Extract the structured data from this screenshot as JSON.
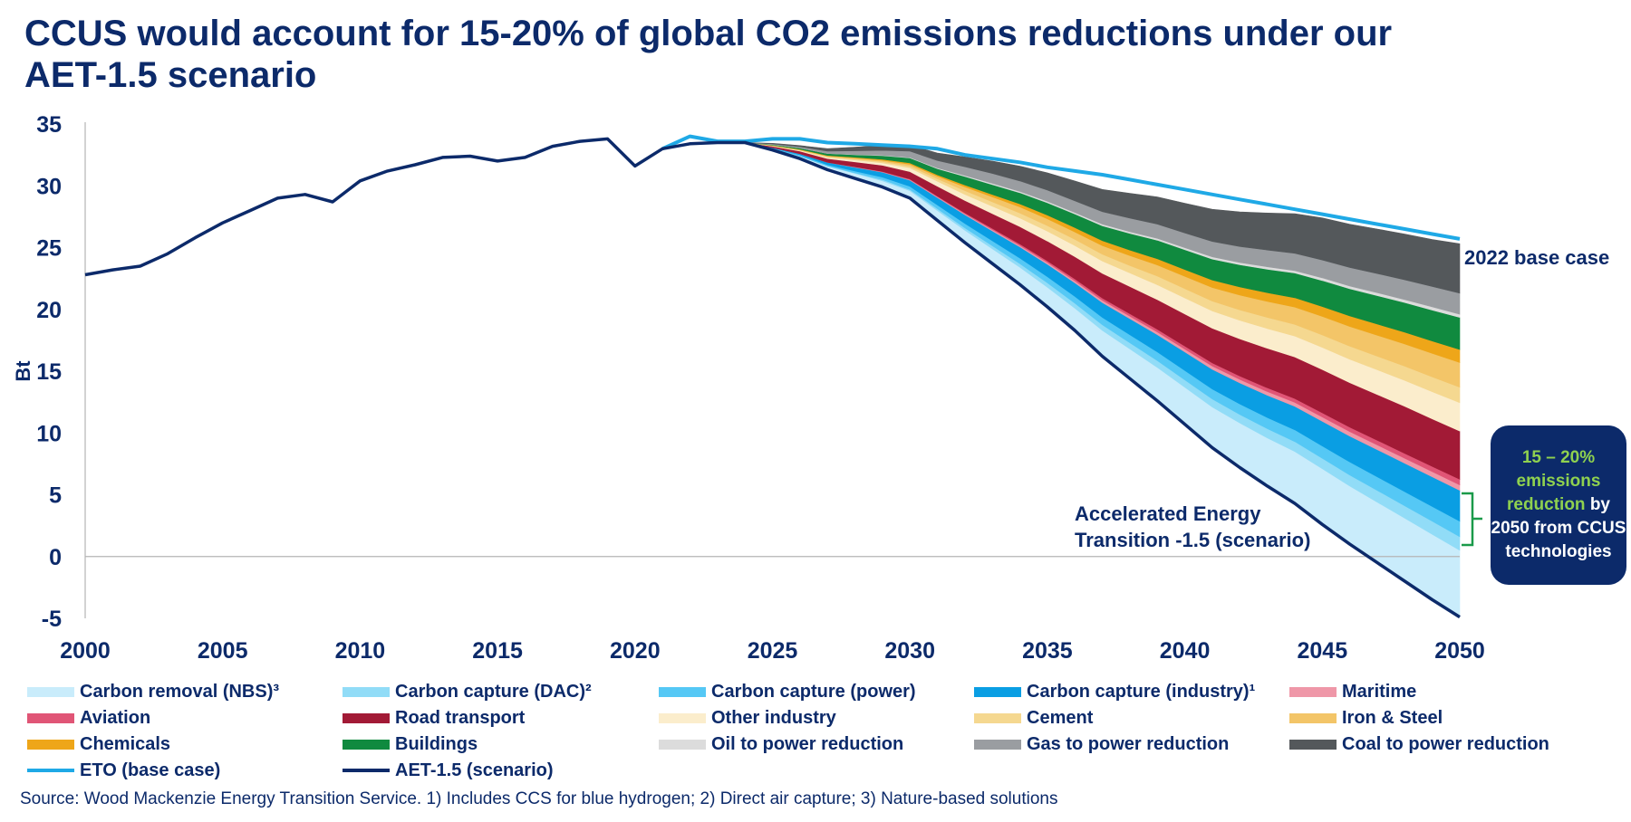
{
  "title": "CCUS would account for 15-20% of global CO2 emissions reductions under our AET-1.5 scenario",
  "callout": {
    "highlight": "15 – 20% emissions reduction",
    "rest": " by 2050 from CCUS technologies"
  },
  "source": "Source: Wood Mackenzie Energy Transition Service. 1) Includes CCS for blue hydrogen; 2) Direct air capture; 3) Nature-based solutions",
  "chart_data": {
    "type": "area",
    "ylabel": "Bt",
    "xlim": [
      2000,
      2050
    ],
    "ylim": [
      -5,
      35
    ],
    "x_ticks": [
      "2000",
      "2005",
      "2010",
      "2015",
      "2020",
      "2025",
      "2030",
      "2035",
      "2040",
      "2045",
      "2050"
    ],
    "y_ticks": [
      "35",
      "30",
      "25",
      "20",
      "15",
      "10",
      "5",
      "0",
      "-5"
    ],
    "annotations": {
      "base_case": "2022 base case",
      "aet_line1": "Accelerated Energy",
      "aet_line2": "Transition -1.5 (scenario)"
    },
    "historical": {
      "x": [
        2000,
        2001,
        2002,
        2003,
        2004,
        2005,
        2006,
        2007,
        2008,
        2009,
        2010,
        2011,
        2012,
        2013,
        2014,
        2015,
        2016,
        2017,
        2018,
        2019,
        2020,
        2021,
        2022,
        2023,
        2024
      ],
      "y": [
        22.8,
        23.2,
        23.5,
        24.5,
        25.8,
        27.0,
        28.0,
        29.0,
        29.3,
        28.7,
        30.4,
        31.2,
        31.7,
        32.3,
        32.4,
        32.0,
        32.3,
        33.2,
        33.6,
        33.8,
        31.6,
        33.0,
        33.4,
        33.5,
        33.5
      ]
    },
    "projection_x": [
      2024,
      2025,
      2026,
      2027,
      2028,
      2029,
      2030,
      2031,
      2032,
      2033,
      2034,
      2035,
      2036,
      2037,
      2038,
      2039,
      2040,
      2041,
      2042,
      2043,
      2044,
      2045,
      2046,
      2047,
      2048,
      2049,
      2050
    ],
    "eto_base": {
      "name": "ETO (base case)",
      "x": [
        2021,
        2022,
        2023,
        2024,
        2025,
        2026,
        2027,
        2028,
        2029,
        2030,
        2031,
        2032,
        2033,
        2034,
        2035,
        2036,
        2037,
        2038,
        2039,
        2040,
        2041,
        2042,
        2043,
        2044,
        2045,
        2046,
        2047,
        2048,
        2049,
        2050
      ],
      "y": [
        33.0,
        34.0,
        33.6,
        33.6,
        33.8,
        33.8,
        33.5,
        33.4,
        33.3,
        33.2,
        33.0,
        32.5,
        32.2,
        31.9,
        31.5,
        31.2,
        30.9,
        30.5,
        30.1,
        29.7,
        29.3,
        28.9,
        28.5,
        28.1,
        27.7,
        27.3,
        26.9,
        26.5,
        26.1,
        25.7
      ]
    },
    "aet_scenario": {
      "name": "AET-1.5 (scenario)",
      "y": [
        33.5,
        32.9,
        32.2,
        31.3,
        30.6,
        29.9,
        29.0,
        27.2,
        25.4,
        23.7,
        22.0,
        20.2,
        18.3,
        16.2,
        14.4,
        12.6,
        10.7,
        8.8,
        7.2,
        5.7,
        4.3,
        2.6,
        1.0,
        -0.5,
        -2.0,
        -3.5,
        -4.9
      ]
    },
    "series": [
      {
        "name": "Carbon removal (NBS)³",
        "color": "#c9ecfb",
        "values": [
          0,
          0.1,
          0.2,
          0.3,
          0.4,
          0.5,
          0.6,
          0.8,
          1.0,
          1.2,
          1.4,
          1.6,
          1.8,
          2.1,
          2.4,
          2.7,
          3.0,
          3.3,
          3.6,
          3.9,
          4.2,
          4.5,
          4.7,
          4.9,
          5.1,
          5.3,
          5.4
        ]
      },
      {
        "name": "Carbon capture (DAC)²",
        "color": "#91dcf7",
        "values": [
          0,
          0,
          0,
          0,
          0.05,
          0.1,
          0.1,
          0.15,
          0.2,
          0.25,
          0.3,
          0.35,
          0.4,
          0.45,
          0.5,
          0.55,
          0.6,
          0.65,
          0.7,
          0.75,
          0.8,
          0.85,
          0.9,
          0.95,
          1.0,
          1.05,
          1.1
        ]
      },
      {
        "name": "Carbon capture (power)",
        "color": "#55c8f5",
        "values": [
          0,
          0.05,
          0.1,
          0.1,
          0.15,
          0.2,
          0.25,
          0.3,
          0.35,
          0.4,
          0.45,
          0.5,
          0.55,
          0.6,
          0.65,
          0.7,
          0.75,
          0.8,
          0.85,
          0.9,
          0.95,
          1.0,
          1.05,
          1.1,
          1.15,
          1.2,
          1.25
        ]
      },
      {
        "name": "Carbon capture (industry)¹",
        "color": "#0a9ee3",
        "values": [
          0,
          0.05,
          0.1,
          0.2,
          0.3,
          0.4,
          0.5,
          0.6,
          0.7,
          0.8,
          0.9,
          1.0,
          1.1,
          1.2,
          1.3,
          1.4,
          1.5,
          1.6,
          1.7,
          1.8,
          1.9,
          2.0,
          2.1,
          2.2,
          2.3,
          2.4,
          2.5
        ]
      },
      {
        "name": "Maritime",
        "color": "#ef97a8",
        "values": [
          0,
          0,
          0,
          0,
          0.02,
          0.03,
          0.05,
          0.06,
          0.08,
          0.1,
          0.12,
          0.14,
          0.16,
          0.18,
          0.2,
          0.22,
          0.24,
          0.26,
          0.28,
          0.3,
          0.32,
          0.34,
          0.36,
          0.38,
          0.4,
          0.42,
          0.45
        ]
      },
      {
        "name": "Aviation",
        "color": "#e05576",
        "values": [
          0,
          0,
          0,
          0,
          0.02,
          0.03,
          0.05,
          0.06,
          0.08,
          0.1,
          0.12,
          0.14,
          0.16,
          0.18,
          0.2,
          0.22,
          0.24,
          0.26,
          0.28,
          0.3,
          0.32,
          0.34,
          0.36,
          0.38,
          0.4,
          0.42,
          0.45
        ]
      },
      {
        "name": "Road transport",
        "color": "#a21a36",
        "values": [
          0,
          0.1,
          0.2,
          0.3,
          0.4,
          0.5,
          0.6,
          0.8,
          1.0,
          1.2,
          1.4,
          1.6,
          1.8,
          2.0,
          2.2,
          2.4,
          2.6,
          2.8,
          3.0,
          3.2,
          3.35,
          3.5,
          3.6,
          3.7,
          3.8,
          3.85,
          3.9
        ]
      },
      {
        "name": "Other industry",
        "color": "#fbedcc",
        "values": [
          0,
          0.03,
          0.05,
          0.1,
          0.15,
          0.2,
          0.3,
          0.4,
          0.5,
          0.6,
          0.7,
          0.8,
          0.9,
          1.0,
          1.1,
          1.2,
          1.3,
          1.4,
          1.5,
          1.6,
          1.7,
          1.8,
          1.9,
          2.0,
          2.1,
          2.2,
          2.3
        ]
      },
      {
        "name": "Cement",
        "color": "#f5d890",
        "values": [
          0,
          0.02,
          0.04,
          0.06,
          0.08,
          0.1,
          0.15,
          0.2,
          0.3,
          0.35,
          0.4,
          0.45,
          0.5,
          0.55,
          0.6,
          0.7,
          0.75,
          0.8,
          0.85,
          0.9,
          0.95,
          1.0,
          1.05,
          1.1,
          1.15,
          1.2,
          1.25
        ]
      },
      {
        "name": "Iron & Steel",
        "color": "#f3c568",
        "values": [
          0,
          0.02,
          0.04,
          0.06,
          0.08,
          0.1,
          0.15,
          0.2,
          0.3,
          0.4,
          0.5,
          0.55,
          0.6,
          0.7,
          0.8,
          0.9,
          1.0,
          1.1,
          1.2,
          1.3,
          1.4,
          1.5,
          1.6,
          1.7,
          1.8,
          1.9,
          2.0
        ]
      },
      {
        "name": "Chemicals",
        "color": "#eea619",
        "values": [
          0,
          0.02,
          0.03,
          0.04,
          0.06,
          0.08,
          0.1,
          0.12,
          0.15,
          0.2,
          0.25,
          0.3,
          0.35,
          0.4,
          0.45,
          0.5,
          0.55,
          0.6,
          0.65,
          0.7,
          0.75,
          0.8,
          0.85,
          0.9,
          0.95,
          1.0,
          1.05
        ]
      },
      {
        "name": "Buildings",
        "color": "#108a3f",
        "values": [
          0,
          0.05,
          0.1,
          0.15,
          0.2,
          0.3,
          0.4,
          0.5,
          0.7,
          0.8,
          0.9,
          1.0,
          1.1,
          1.2,
          1.35,
          1.5,
          1.6,
          1.7,
          1.8,
          1.9,
          2.0,
          2.1,
          2.2,
          2.3,
          2.4,
          2.5,
          2.6
        ]
      },
      {
        "name": "Oil to power reduction",
        "color": "#dcdcdc",
        "values": [
          0,
          0,
          0,
          0,
          0.02,
          0.03,
          0.05,
          0.06,
          0.08,
          0.1,
          0.1,
          0.12,
          0.12,
          0.14,
          0.14,
          0.16,
          0.16,
          0.18,
          0.18,
          0.2,
          0.2,
          0.22,
          0.22,
          0.24,
          0.24,
          0.26,
          0.26
        ]
      },
      {
        "name": "Gas to power reduction",
        "color": "#9a9da1",
        "values": [
          0,
          0.05,
          0.1,
          0.2,
          0.3,
          0.4,
          0.5,
          0.6,
          0.7,
          0.8,
          0.85,
          0.9,
          0.95,
          1.0,
          1.1,
          1.15,
          1.2,
          1.25,
          1.3,
          1.35,
          1.4,
          1.45,
          1.5,
          1.55,
          1.6,
          1.65,
          1.7
        ]
      },
      {
        "name": "Coal to power reduction",
        "color": "#54585b",
        "values": [
          0,
          0.05,
          0.1,
          0.2,
          0.3,
          0.4,
          0.5,
          0.6,
          0.8,
          1.0,
          1.2,
          1.4,
          1.6,
          1.8,
          2.0,
          2.2,
          2.4,
          2.6,
          2.8,
          3.0,
          3.2,
          3.4,
          3.5,
          3.6,
          3.7,
          3.8,
          4.0
        ]
      }
    ],
    "legend": [
      {
        "name": "Carbon removal (NBS)³",
        "color": "#c9ecfb",
        "kind": "area"
      },
      {
        "name": "Carbon capture (DAC)²",
        "color": "#91dcf7",
        "kind": "area"
      },
      {
        "name": "Carbon capture (power)",
        "color": "#55c8f5",
        "kind": "area"
      },
      {
        "name": "Carbon capture (industry)¹",
        "color": "#0a9ee3",
        "kind": "area"
      },
      {
        "name": "Maritime",
        "color": "#ef97a8",
        "kind": "area"
      },
      {
        "name": "Aviation",
        "color": "#e05576",
        "kind": "area"
      },
      {
        "name": "Road transport",
        "color": "#a21a36",
        "kind": "area"
      },
      {
        "name": "Other industry",
        "color": "#fbedcc",
        "kind": "area"
      },
      {
        "name": "Cement",
        "color": "#f5d890",
        "kind": "area"
      },
      {
        "name": "Iron & Steel",
        "color": "#f3c568",
        "kind": "area"
      },
      {
        "name": "Chemicals",
        "color": "#eea619",
        "kind": "area"
      },
      {
        "name": "Buildings",
        "color": "#108a3f",
        "kind": "area"
      },
      {
        "name": "Oil to power reduction",
        "color": "#dcdcdc",
        "kind": "area"
      },
      {
        "name": "Gas to power reduction",
        "color": "#9a9da1",
        "kind": "area"
      },
      {
        "name": "Coal to power reduction",
        "color": "#54585b",
        "kind": "area"
      },
      {
        "name": "ETO (base case)",
        "color": "#1fa9e6",
        "kind": "line"
      },
      {
        "name": "AET-1.5 (scenario)",
        "color": "#0c2a6a",
        "kind": "line"
      }
    ],
    "line_colors": {
      "eto": "#1fa9e6",
      "aet": "#0c2a6a",
      "axis": "#b5b5b5",
      "bracket": "#1a9a4a"
    },
    "legend_placement": "bottom",
    "grid": false
  }
}
